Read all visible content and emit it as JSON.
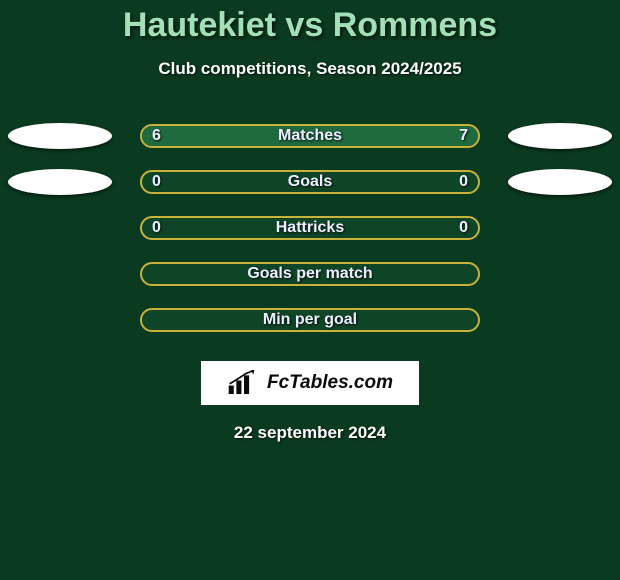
{
  "colors": {
    "page_bg": "#0a3a1f",
    "title_color": "#a3e0b8",
    "subtitle_color": "#ffffff",
    "bar_border": "#c9b23a",
    "bar_bg_empty": "#0f4527",
    "bar_fill": "#1f6a3f",
    "ellipse_bg": "#ffffff",
    "logo_bg": "#ffffff",
    "logo_text": "#0b0b0b"
  },
  "header": {
    "player1": "Hautekiet",
    "vs": "vs",
    "player2": "Rommens",
    "subtitle": "Club competitions, Season 2024/2025",
    "title_fontsize": 34,
    "subtitle_fontsize": 17
  },
  "stats": [
    {
      "label": "Matches",
      "left_val": "6",
      "right_val": "7",
      "left_pct": 46,
      "right_pct": 54,
      "show_ellipses": true,
      "show_values": true
    },
    {
      "label": "Goals",
      "left_val": "0",
      "right_val": "0",
      "left_pct": 0,
      "right_pct": 0,
      "show_ellipses": true,
      "show_values": true
    },
    {
      "label": "Hattricks",
      "left_val": "0",
      "right_val": "0",
      "left_pct": 0,
      "right_pct": 0,
      "show_ellipses": false,
      "show_values": true
    },
    {
      "label": "Goals per match",
      "left_val": "",
      "right_val": "",
      "left_pct": 0,
      "right_pct": 0,
      "show_ellipses": false,
      "show_values": false
    },
    {
      "label": "Min per goal",
      "left_val": "",
      "right_val": "",
      "left_pct": 0,
      "right_pct": 0,
      "show_ellipses": false,
      "show_values": false
    }
  ],
  "bar_style": {
    "height": 24,
    "border_radius": 12,
    "border_width": 2,
    "label_fontsize": 16,
    "value_fontsize": 16
  },
  "ellipse_style": {
    "width": 104,
    "height": 26
  },
  "logo": {
    "text": "FcTables.com",
    "fontsize": 19
  },
  "footer": {
    "date": "22 september 2024",
    "fontsize": 17
  }
}
